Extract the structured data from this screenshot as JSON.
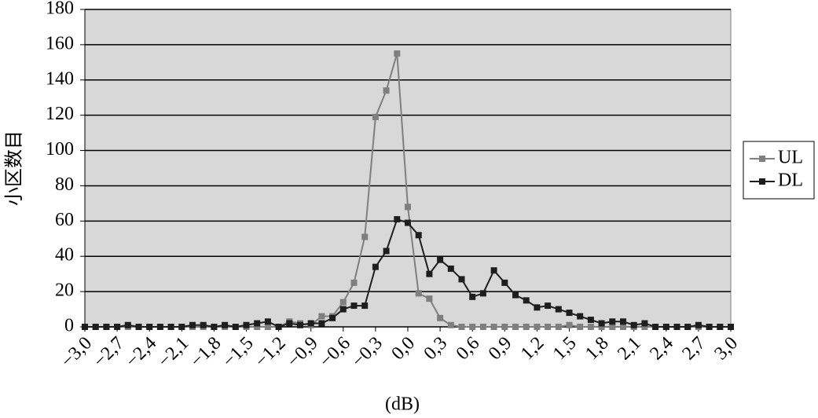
{
  "chart_data": {
    "type": "line",
    "y_label": "小区数目",
    "x_label": "(dB)",
    "x": [
      -3.0,
      -2.9,
      -2.8,
      -2.7,
      -2.6,
      -2.5,
      -2.4,
      -2.3,
      -2.2,
      -2.1,
      -2.0,
      -1.9,
      -1.8,
      -1.7,
      -1.6,
      -1.5,
      -1.4,
      -1.3,
      -1.2,
      -1.1,
      -1.0,
      -0.9,
      -0.8,
      -0.7,
      -0.6,
      -0.5,
      -0.4,
      -0.3,
      -0.2,
      -0.1,
      0.0,
      0.1,
      0.2,
      0.3,
      0.4,
      0.5,
      0.6,
      0.7,
      0.8,
      0.9,
      1.0,
      1.1,
      1.2,
      1.3,
      1.4,
      1.5,
      1.6,
      1.7,
      1.8,
      1.9,
      2.0,
      2.1,
      2.2,
      2.3,
      2.4,
      2.5,
      2.6,
      2.7,
      2.8,
      2.9,
      3.0
    ],
    "series": [
      {
        "name": "UL",
        "color": "#7f7f7f",
        "values": [
          0,
          0,
          0,
          0,
          0,
          0,
          0,
          0,
          0,
          0,
          0,
          0,
          0,
          0,
          0,
          0,
          0,
          0,
          0,
          3,
          2,
          1,
          6,
          6,
          14,
          25,
          51,
          119,
          134,
          155,
          68,
          19,
          16,
          5,
          1,
          0,
          0,
          0,
          0,
          0,
          0,
          0,
          0,
          0,
          0,
          1,
          0,
          0,
          0,
          0,
          0,
          0,
          0,
          0,
          0,
          0,
          0,
          0,
          0,
          0,
          0
        ]
      },
      {
        "name": "DL",
        "color": "#1e1e1e",
        "values": [
          0,
          0,
          0,
          0,
          1,
          0,
          0,
          0,
          0,
          0,
          1,
          1,
          0,
          1,
          0,
          1,
          2,
          3,
          0,
          2,
          1,
          2,
          2,
          5,
          10,
          12,
          12,
          34,
          43,
          61,
          59,
          52,
          30,
          38,
          33,
          27,
          17,
          19,
          32,
          25,
          18,
          15,
          11,
          12,
          10,
          8,
          6,
          4,
          2,
          3,
          3,
          1,
          2,
          0,
          0,
          0,
          0,
          1,
          0,
          0,
          0
        ]
      }
    ],
    "xlim": [
      -3.0,
      3.0
    ],
    "xticks": [
      {
        "value": -3.0,
        "label": "−3,0"
      },
      {
        "value": -2.7,
        "label": "−2,7"
      },
      {
        "value": -2.4,
        "label": "−2,4"
      },
      {
        "value": -2.1,
        "label": "−2,1"
      },
      {
        "value": -1.8,
        "label": "−1,8"
      },
      {
        "value": -1.5,
        "label": "−1,5"
      },
      {
        "value": -1.2,
        "label": "−1,2"
      },
      {
        "value": -0.9,
        "label": "−0,9"
      },
      {
        "value": -0.6,
        "label": "−0,6"
      },
      {
        "value": -0.3,
        "label": "−0,3"
      },
      {
        "value": 0.0,
        "label": "0,0"
      },
      {
        "value": 0.3,
        "label": "0,3"
      },
      {
        "value": 0.6,
        "label": "0,6"
      },
      {
        "value": 0.9,
        "label": "0,9"
      },
      {
        "value": 1.2,
        "label": "1,2"
      },
      {
        "value": 1.5,
        "label": "1,5"
      },
      {
        "value": 1.8,
        "label": "1,8"
      },
      {
        "value": 2.1,
        "label": "2,1"
      },
      {
        "value": 2.4,
        "label": "2,4"
      },
      {
        "value": 2.7,
        "label": "2,7"
      },
      {
        "value": 3.0,
        "label": "3,0"
      }
    ],
    "ylim": [
      0,
      180
    ],
    "yticks": [
      0,
      20,
      40,
      60,
      80,
      100,
      120,
      140,
      160,
      180
    ],
    "grid": true,
    "legend": "right"
  }
}
